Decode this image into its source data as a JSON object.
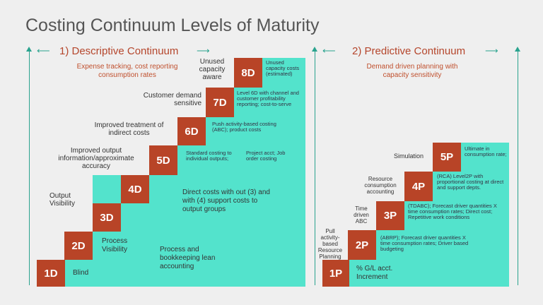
{
  "title": "Costing Continuum Levels of Maturity",
  "left": {
    "heading": "1) Descriptive Continuum",
    "subtitle": "Expense tracking, cost reporting consumption rates",
    "levels": [
      {
        "code": "1D",
        "outside": "",
        "inside": "Blind"
      },
      {
        "code": "2D",
        "outside": "",
        "inside": "Process Visibility"
      },
      {
        "code": "3D",
        "outside": "Output Visibility",
        "inside": "Process and bookkeeping lean accounting"
      },
      {
        "code": "4D",
        "outside": "",
        "inside": "Direct costs with out (3) and with (4) support costs to output groups"
      },
      {
        "code": "5D",
        "outside": "Improved output information/approximate accuracy",
        "inside": "Standard costing to individual outputs;",
        "inside2": "Project acct; Job order costing"
      },
      {
        "code": "6D",
        "outside": "Improved treatment of indirect costs",
        "inside": "Push activity-based costing (ABC); product costs"
      },
      {
        "code": "7D",
        "outside": "Customer demand sensitive",
        "inside": "Level 6D with channel and customer profitability reporting; cost-to-serve"
      },
      {
        "code": "8D",
        "outside": "Unused capacity aware",
        "inside": "Unused capacity costs (estimated)"
      }
    ]
  },
  "right": {
    "heading": "2) Predictive Continuum",
    "subtitle": "Demand driven planning with capacity sensitivity",
    "levels": [
      {
        "code": "1P",
        "outside": "",
        "inside": "% G/L acct. Increment"
      },
      {
        "code": "2P",
        "outside": "Pull activity-based Resource Planning",
        "inside": "(ABRP); Forecast driver quantities X time consumption rates; Driver based budgeting"
      },
      {
        "code": "3P",
        "outside": "Time driven ABC",
        "inside": "(TDABC); Forecast driver quantities X time consumption rates; Direct cost; Repetitive work conditions"
      },
      {
        "code": "4P",
        "outside": "Resource consumption accounting",
        "inside": "(RCA) Level2P with proportional costing at direct and support depts."
      },
      {
        "code": "5P",
        "outside": "Simulation",
        "inside": "Ultimate in consumption rate;"
      }
    ]
  },
  "colors": {
    "teal": "#53e3cc",
    "box": "#b84427",
    "accent": "#c0502e",
    "line": "#2aa38e"
  }
}
